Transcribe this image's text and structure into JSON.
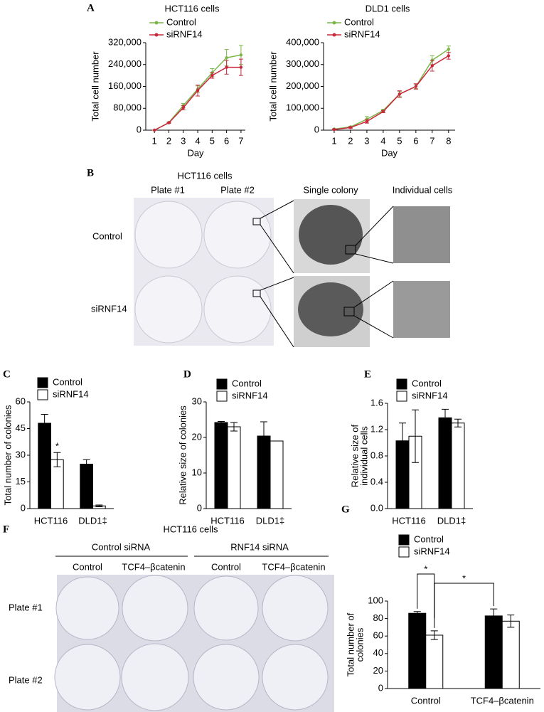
{
  "panel_labels": [
    "A",
    "B",
    "C",
    "D",
    "E",
    "F",
    "G"
  ],
  "photo_b": {
    "title": "HCT116 cells",
    "columns": [
      "Plate #1",
      "Plate #2",
      "Single colony",
      "Individual cells"
    ],
    "rows": [
      "Control",
      "siRNF14"
    ]
  },
  "photo_f": {
    "title": "HCT116 cells",
    "groups": [
      "Control siRNA",
      "RNF14 siRNA"
    ],
    "columns": [
      "Control",
      "TCF4–βcatenin",
      "Control",
      "TCF4–βcatenin"
    ],
    "rows": [
      "Plate #1",
      "Plate #2"
    ]
  },
  "chart_data": [
    {
      "type": "line",
      "title": "HCT116 cells",
      "xlabel": "Day",
      "ylabel": [
        "Total cell number"
      ],
      "x": [
        1,
        2,
        3,
        4,
        5,
        6,
        7
      ],
      "xlim": [
        0.4,
        7.3
      ],
      "xticks": [
        1,
        2,
        3,
        4,
        5,
        6,
        7
      ],
      "ylim": [
        0,
        320000
      ],
      "yticks": [
        0,
        {
          "value": 80000,
          "label": "80,000"
        },
        {
          "value": 160000,
          "label": "160,000"
        },
        {
          "value": 240000,
          "label": "240,000"
        },
        {
          "value": 320000,
          "label": "320,000"
        }
      ],
      "series": [
        {
          "name": "Control",
          "color": "#7ab648",
          "values": [
            0,
            28000,
            90000,
            150000,
            210000,
            265000,
            275000
          ],
          "errors": [
            0,
            2000,
            8000,
            12000,
            15000,
            30000,
            35000
          ]
        },
        {
          "name": "siRNF14",
          "color": "#c8283c",
          "values": [
            0,
            27000,
            82000,
            145000,
            200000,
            230000,
            230000
          ],
          "errors": [
            0,
            2000,
            8000,
            20000,
            10000,
            25000,
            30000
          ]
        }
      ]
    },
    {
      "type": "line",
      "title": "DLD1 cells",
      "xlabel": "Day",
      "ylabel": [
        "Total cell number"
      ],
      "x": [
        1,
        2,
        3,
        4,
        5,
        6,
        7,
        8
      ],
      "xlim": [
        0.35,
        8.4
      ],
      "xticks": [
        1,
        2,
        3,
        4,
        5,
        6,
        7,
        8
      ],
      "ylim": [
        0,
        400000
      ],
      "yticks": [
        0,
        {
          "value": 100000,
          "label": "100,000"
        },
        {
          "value": 200000,
          "label": "200,000"
        },
        {
          "value": 300000,
          "label": "300,000"
        },
        {
          "value": 400000,
          "label": "400,000"
        }
      ],
      "series": [
        {
          "name": "Control",
          "color": "#7ab648",
          "values": [
            5000,
            15000,
            50000,
            90000,
            165000,
            200000,
            320000,
            370000
          ],
          "errors": [
            2000,
            3000,
            12000,
            6000,
            12000,
            10000,
            20000,
            15000
          ]
        },
        {
          "name": "siRNF14",
          "color": "#c8283c",
          "values": [
            3000,
            12000,
            40000,
            85000,
            165000,
            200000,
            295000,
            340000
          ],
          "errors": [
            2000,
            3000,
            8000,
            5000,
            15000,
            12000,
            25000,
            15000
          ]
        }
      ]
    },
    {
      "type": "bar",
      "ylabel": [
        "Total number of colonies"
      ],
      "categories": [
        "HCT116",
        "DLD1‡"
      ],
      "ylim": [
        0,
        60
      ],
      "yticks": [
        0,
        15,
        30,
        45,
        60
      ],
      "annotations": [
        "*"
      ],
      "series": [
        {
          "name": "Control",
          "color": "#000000",
          "values": [
            48,
            25
          ],
          "errors": [
            5,
            2.5
          ]
        },
        {
          "name": "siRNF14",
          "color": "#ffffff",
          "values": [
            27.5,
            1.5
          ],
          "errors": [
            4,
            0.5
          ]
        }
      ]
    },
    {
      "type": "bar",
      "ylabel": [
        "Relative size of colonies"
      ],
      "categories": [
        "HCT116",
        "DLD1‡"
      ],
      "ylim": [
        0,
        30
      ],
      "yticks": [
        0,
        10,
        20,
        30
      ],
      "series": [
        {
          "name": "Control",
          "color": "#000000",
          "values": [
            24.2,
            20.4
          ],
          "errors": [
            0.3,
            4
          ]
        },
        {
          "name": "siRNF14",
          "color": "#ffffff",
          "values": [
            23,
            19
          ],
          "errors": [
            1.2,
            0
          ]
        }
      ]
    },
    {
      "type": "bar",
      "ylabel": [
        "Relative size of",
        "individual cells"
      ],
      "categories": [
        "HCT116",
        "DLD1‡"
      ],
      "ylim": [
        0,
        1.6
      ],
      "yticks": [
        {
          "value": 0,
          "label": "0.0"
        },
        0.4,
        0.8,
        1.2,
        1.6
      ],
      "series": [
        {
          "name": "Control",
          "color": "#000000",
          "values": [
            1.03,
            1.38
          ],
          "errors": [
            0.27,
            0.13
          ]
        },
        {
          "name": "siRNF14",
          "color": "#ffffff",
          "values": [
            1.1,
            1.3
          ],
          "errors": [
            0.4,
            0.06
          ]
        }
      ]
    },
    {
      "type": "bar",
      "ylabel": [
        "Total number of",
        "colonies"
      ],
      "categories": [
        "Control",
        "TCF4–βcatenin"
      ],
      "ylim": [
        0,
        100
      ],
      "yticks": [
        0,
        20,
        40,
        60,
        80,
        100
      ],
      "annotations": [
        "*",
        "*"
      ],
      "series": [
        {
          "name": "Control",
          "color": "#000000",
          "values": [
            86,
            83
          ],
          "errors": [
            2,
            8
          ]
        },
        {
          "name": "siRNF14",
          "color": "#ffffff",
          "values": [
            61,
            77
          ],
          "errors": [
            5,
            7
          ]
        }
      ]
    }
  ]
}
